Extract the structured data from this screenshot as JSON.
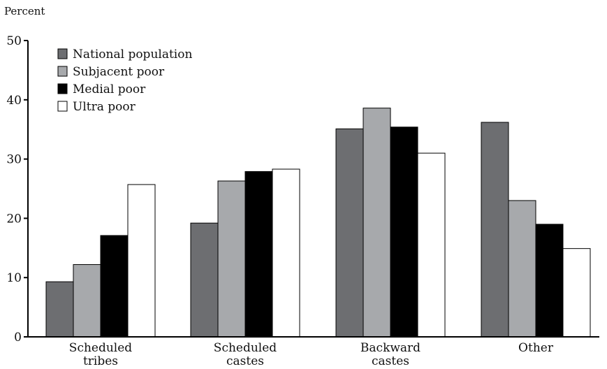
{
  "chart_data": {
    "type": "bar",
    "ylabel": "Percent",
    "ylim": [
      0,
      50
    ],
    "yticks": [
      0,
      10,
      20,
      30,
      40,
      50
    ],
    "grid": false,
    "legend_position": "top-left",
    "categories": [
      [
        "Scheduled",
        "tribes"
      ],
      [
        "Scheduled",
        "castes"
      ],
      [
        "Backward",
        "castes"
      ],
      [
        "Other"
      ]
    ],
    "series": [
      {
        "name": "National population",
        "color": "#6d6e71",
        "values": [
          9.3,
          19.2,
          35.1,
          36.2
        ]
      },
      {
        "name": "Subjacent poor",
        "color": "#a7a9ac",
        "values": [
          12.2,
          26.3,
          38.6,
          23.0
        ]
      },
      {
        "name": "Medial poor",
        "color": "#000000",
        "values": [
          17.1,
          27.9,
          35.4,
          19.0
        ]
      },
      {
        "name": "Ultra poor",
        "color": "#ffffff",
        "values": [
          25.7,
          28.3,
          31.0,
          14.9
        ]
      }
    ]
  }
}
